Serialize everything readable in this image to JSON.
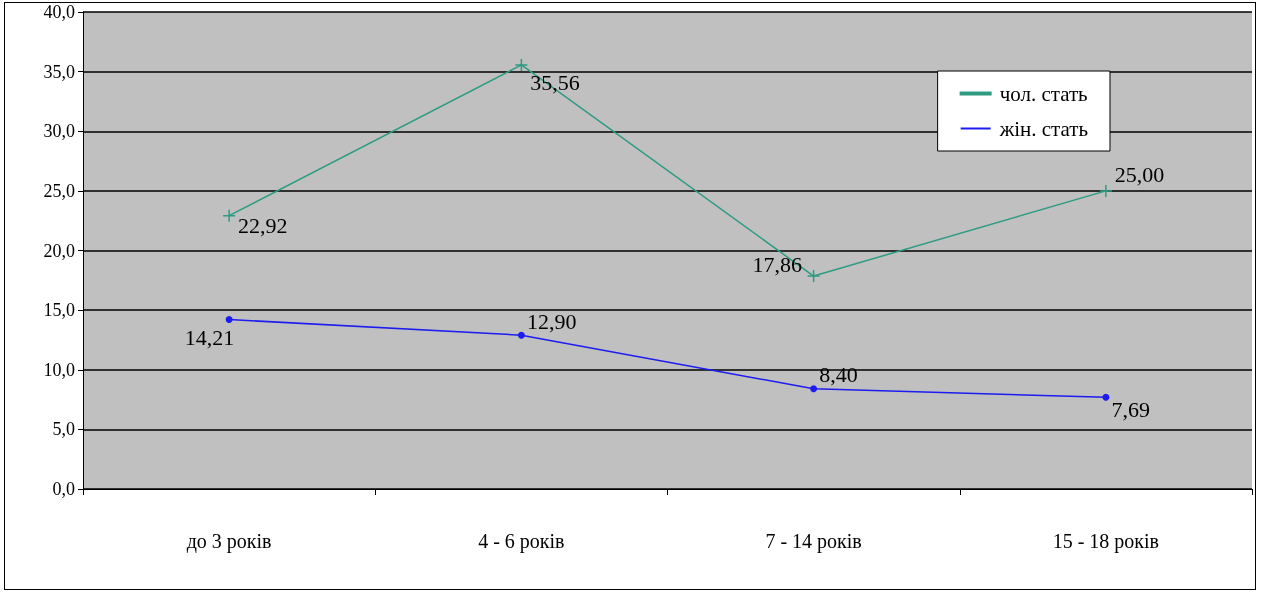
{
  "chart_data": {
    "type": "line",
    "categories": [
      "до 3 років",
      "4 - 6 років",
      "7 - 14 років",
      "15 - 18 років"
    ],
    "series": [
      {
        "name": "чол. стать",
        "color": "#2e9b82",
        "marker": "cross",
        "values": [
          22.92,
          35.56,
          17.86,
          25.0
        ],
        "value_labels": [
          "22,92",
          "35,56",
          "17,86",
          "25,00"
        ]
      },
      {
        "name": "жін. стать",
        "color": "#1c1cf0",
        "marker": "circle",
        "values": [
          14.21,
          12.9,
          8.4,
          7.69
        ],
        "value_labels": [
          "14,21",
          "12,90",
          "8,40",
          "7,69"
        ]
      }
    ],
    "ylim": [
      0,
      40
    ],
    "yticks": [
      {
        "value": 0,
        "label": "0,0"
      },
      {
        "value": 5,
        "label": "5,0"
      },
      {
        "value": 10,
        "label": "10,0"
      },
      {
        "value": 15,
        "label": "15,0"
      },
      {
        "value": 20,
        "label": "20,0"
      },
      {
        "value": 25,
        "label": "25,0"
      },
      {
        "value": 30,
        "label": "30,0"
      },
      {
        "value": 35,
        "label": "35,0"
      },
      {
        "value": 40,
        "label": "40,0"
      }
    ],
    "grid": "y",
    "legend": "top right",
    "line_style": "solid"
  }
}
